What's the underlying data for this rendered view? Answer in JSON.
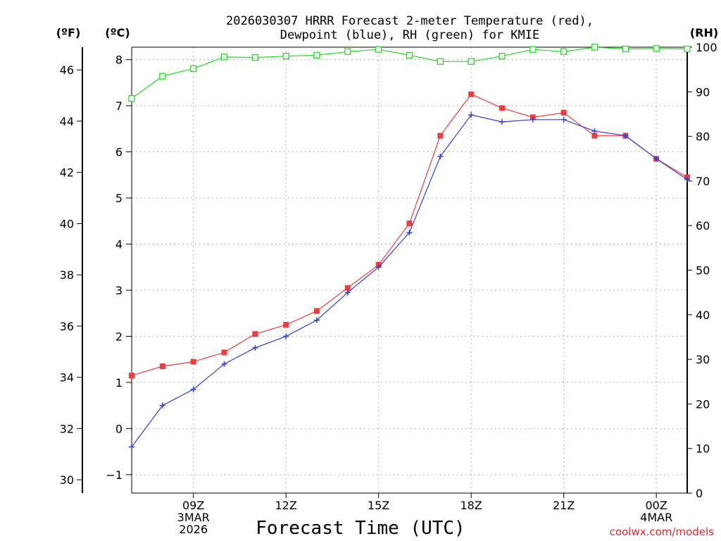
{
  "chart_data": {
    "type": "line",
    "title_lines": [
      "2026030307 HRRR Forecast 2-meter Temperature (red),",
      "Dewpoint (blue), RH (green) for KMIE"
    ],
    "xlabel": "Forecast Time (UTC)",
    "credit": "coolwx.com/models",
    "x_hours": [
      7,
      8,
      9,
      10,
      11,
      12,
      13,
      14,
      15,
      16,
      17,
      18,
      19,
      20,
      21,
      22,
      23,
      24,
      25
    ],
    "xlim": [
      7,
      25
    ],
    "x_ticks": [
      {
        "hour": 9,
        "lines": [
          "09Z",
          "3MAR",
          "2026"
        ]
      },
      {
        "hour": 12,
        "lines": [
          "12Z"
        ]
      },
      {
        "hour": 15,
        "lines": [
          "15Z"
        ]
      },
      {
        "hour": 18,
        "lines": [
          "18Z"
        ]
      },
      {
        "hour": 21,
        "lines": [
          "21Z"
        ]
      },
      {
        "hour": 24,
        "lines": [
          "00Z",
          "4MAR"
        ]
      }
    ],
    "left_axis_c": {
      "label": "(ºC)",
      "ylim": [
        -1.4,
        8.27
      ],
      "ticks": [
        -1,
        0,
        1,
        2,
        3,
        4,
        5,
        6,
        7,
        8
      ]
    },
    "left_axis_f": {
      "label": "(ºF)",
      "ticks": [
        30,
        32,
        34,
        36,
        38,
        40,
        42,
        44,
        46
      ]
    },
    "right_axis_rh": {
      "label": "(RH)",
      "ylim": [
        0,
        100
      ],
      "ticks": [
        0,
        10,
        20,
        30,
        40,
        50,
        60,
        70,
        80,
        90,
        100
      ]
    },
    "series": [
      {
        "name": "Temperature",
        "axis": "c",
        "color": "#f03c3c",
        "marker": "filled-square",
        "values": [
          1.15,
          1.35,
          1.45,
          1.65,
          2.05,
          2.25,
          2.55,
          3.05,
          3.55,
          4.45,
          6.35,
          7.25,
          6.95,
          6.75,
          6.85,
          6.35,
          6.35,
          5.85,
          5.45
        ]
      },
      {
        "name": "Dewpoint",
        "axis": "c",
        "color": "#2f3fe0",
        "marker": "plus",
        "values": [
          -0.4,
          0.5,
          0.85,
          1.4,
          1.75,
          2.0,
          2.35,
          2.95,
          3.5,
          4.25,
          5.9,
          6.8,
          6.65,
          6.7,
          6.7,
          6.45,
          6.35,
          5.85,
          5.4
        ]
      },
      {
        "name": "RH",
        "axis": "rh",
        "color": "#22dd22",
        "marker": "open-square",
        "values": [
          88.5,
          93.5,
          95.2,
          97.8,
          97.7,
          98.0,
          98.2,
          99.0,
          99.5,
          98.2,
          96.8,
          96.8,
          98.0,
          99.5,
          99.0,
          100.0,
          99.6,
          99.7,
          99.6
        ]
      }
    ],
    "grid": true
  }
}
